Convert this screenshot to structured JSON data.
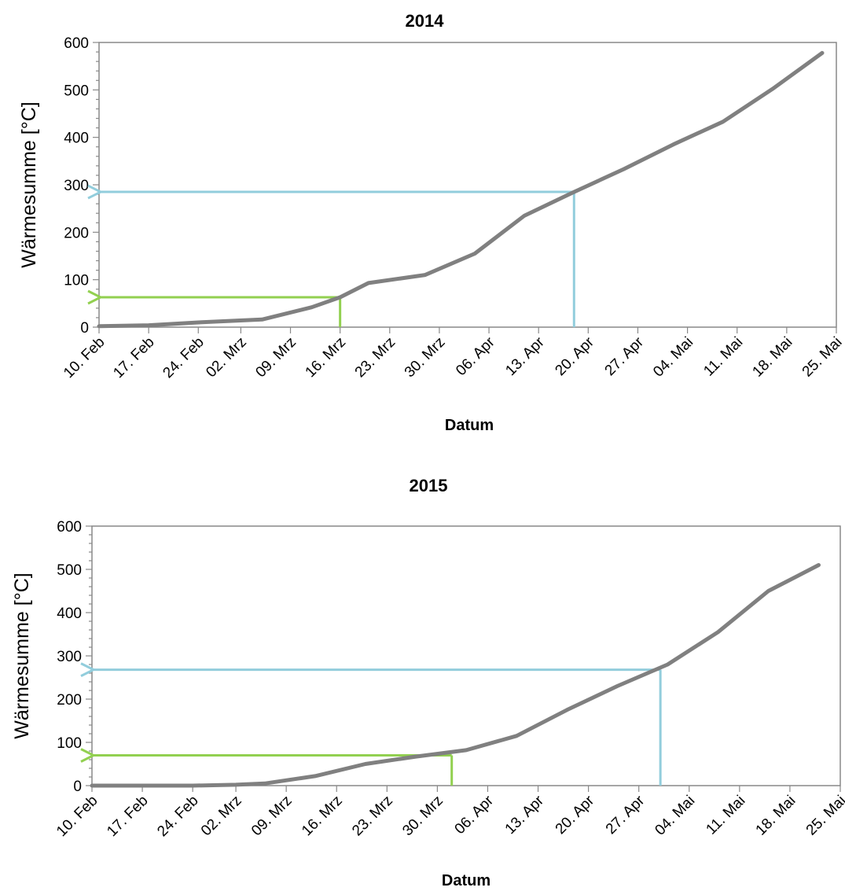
{
  "chart_data": [
    {
      "type": "line",
      "title": "2014",
      "xlabel": "Datum",
      "ylabel": "Wärmesumme [°C]",
      "ylim": [
        0,
        600
      ],
      "yticks": [
        0,
        100,
        200,
        300,
        400,
        500,
        600
      ],
      "xlim": [
        "10. Feb",
        "25. Mai"
      ],
      "x_tick_labels": [
        "10. Feb",
        "17. Feb",
        "24. Feb",
        "02. Mrz",
        "09. Mrz",
        "16. Mrz",
        "23. Mrz",
        "30. Mrz",
        "06. Apr",
        "13. Apr",
        "20. Apr",
        "27. Apr",
        "04. Mai",
        "11. Mai",
        "18. Mai",
        "25. Mai"
      ],
      "grid": false,
      "series": [
        {
          "color": "#808080",
          "x": [
            "10. Feb",
            "17. Feb",
            "24. Feb",
            "05. Mrz",
            "12. Mrz",
            "16. Mrz",
            "20. Mrz",
            "28. Mrz",
            "04. Apr",
            "11. Apr",
            "18. Apr",
            "25. Apr",
            "02. Mai",
            "09. Mai",
            "16. Mai",
            "23. Mai"
          ],
          "y": [
            2,
            4,
            10,
            16,
            42,
            63,
            93,
            110,
            155,
            235,
            285,
            333,
            385,
            433,
            502,
            578
          ]
        }
      ],
      "markers": [
        {
          "color": "#92d050",
          "x": "16. Mrz",
          "y": 63
        },
        {
          "color": "#92cddc",
          "x": "18. Apr",
          "y": 285
        }
      ]
    },
    {
      "type": "line",
      "title": "2015",
      "xlabel": "Datum",
      "ylabel": "Wärmesumme [°C]",
      "ylim": [
        0,
        600
      ],
      "yticks": [
        0,
        100,
        200,
        300,
        400,
        500,
        600
      ],
      "xlim": [
        "10. Feb",
        "25. Mai"
      ],
      "x_tick_labels": [
        "10. Feb",
        "17. Feb",
        "24. Feb",
        "02. Mrz",
        "09. Mrz",
        "16. Mrz",
        "23. Mrz",
        "30. Mrz",
        "06. Apr",
        "13. Apr",
        "20. Apr",
        "27. Apr",
        "04. Mai",
        "11. Mai",
        "18. Mai",
        "25. Mai"
      ],
      "grid": false,
      "series": [
        {
          "color": "#808080",
          "x": [
            "10. Feb",
            "17. Feb",
            "24. Feb",
            "02. Mrz",
            "06. Mrz",
            "13. Mrz",
            "20. Mrz",
            "27. Mrz",
            "03. Apr",
            "10. Apr",
            "17. Apr",
            "24. Apr",
            "01. Mai",
            "08. Mai",
            "15. Mai",
            "22. Mai"
          ],
          "y": [
            0,
            0,
            0,
            2,
            5,
            22,
            50,
            67,
            82,
            115,
            175,
            230,
            280,
            355,
            450,
            510
          ]
        }
      ],
      "markers": [
        {
          "color": "#92d050",
          "x": "01. Apr",
          "y": 70
        },
        {
          "color": "#92cddc",
          "x": "30. Apr",
          "y": 268
        }
      ]
    }
  ]
}
